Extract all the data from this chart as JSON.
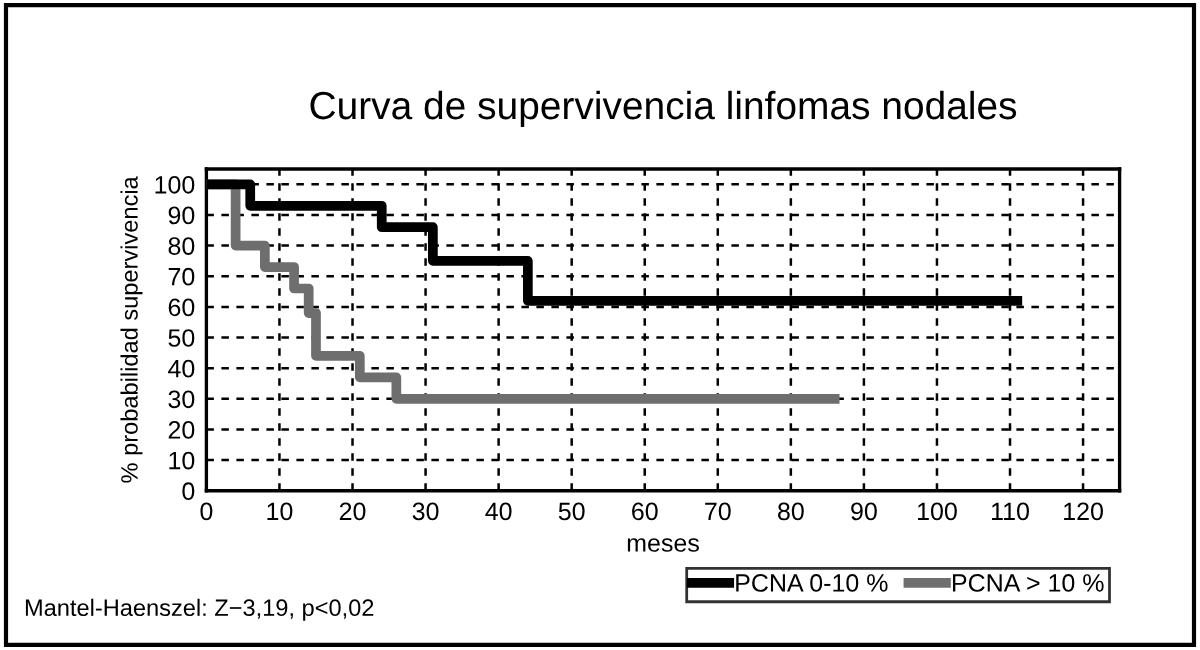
{
  "chart_data": {
    "type": "step",
    "title": "Curva de supervivencia linfomas nodales",
    "xlabel": "meses",
    "ylabel": "% probabilidad supervivencia",
    "series": [
      {
        "name": "PCNA 0-10 %",
        "color": "#000000",
        "x": [
          0,
          6,
          24,
          31,
          44,
          111
        ],
        "values": [
          100,
          93,
          86,
          75,
          62,
          62
        ]
      },
      {
        "name": "PCNA > 10 %",
        "color": "#6e6e6e",
        "x": [
          0,
          4,
          8,
          12,
          14,
          15,
          21,
          26,
          86
        ],
        "values": [
          100,
          80,
          73,
          66,
          58,
          44,
          37,
          30,
          30
        ]
      }
    ],
    "xlim": [
      0,
      125
    ],
    "xticks": [
      0,
      10,
      20,
      30,
      40,
      50,
      60,
      70,
      80,
      90,
      100,
      110,
      120
    ],
    "ylim": [
      0,
      105
    ],
    "yticks": [
      0,
      10,
      20,
      30,
      40,
      50,
      60,
      70,
      80,
      90,
      100
    ],
    "grid": true,
    "legend": "bottom right",
    "line_style": "solid",
    "annotations": [
      "Mantel-Haenszel: Z−3,19, p<0,02"
    ]
  }
}
